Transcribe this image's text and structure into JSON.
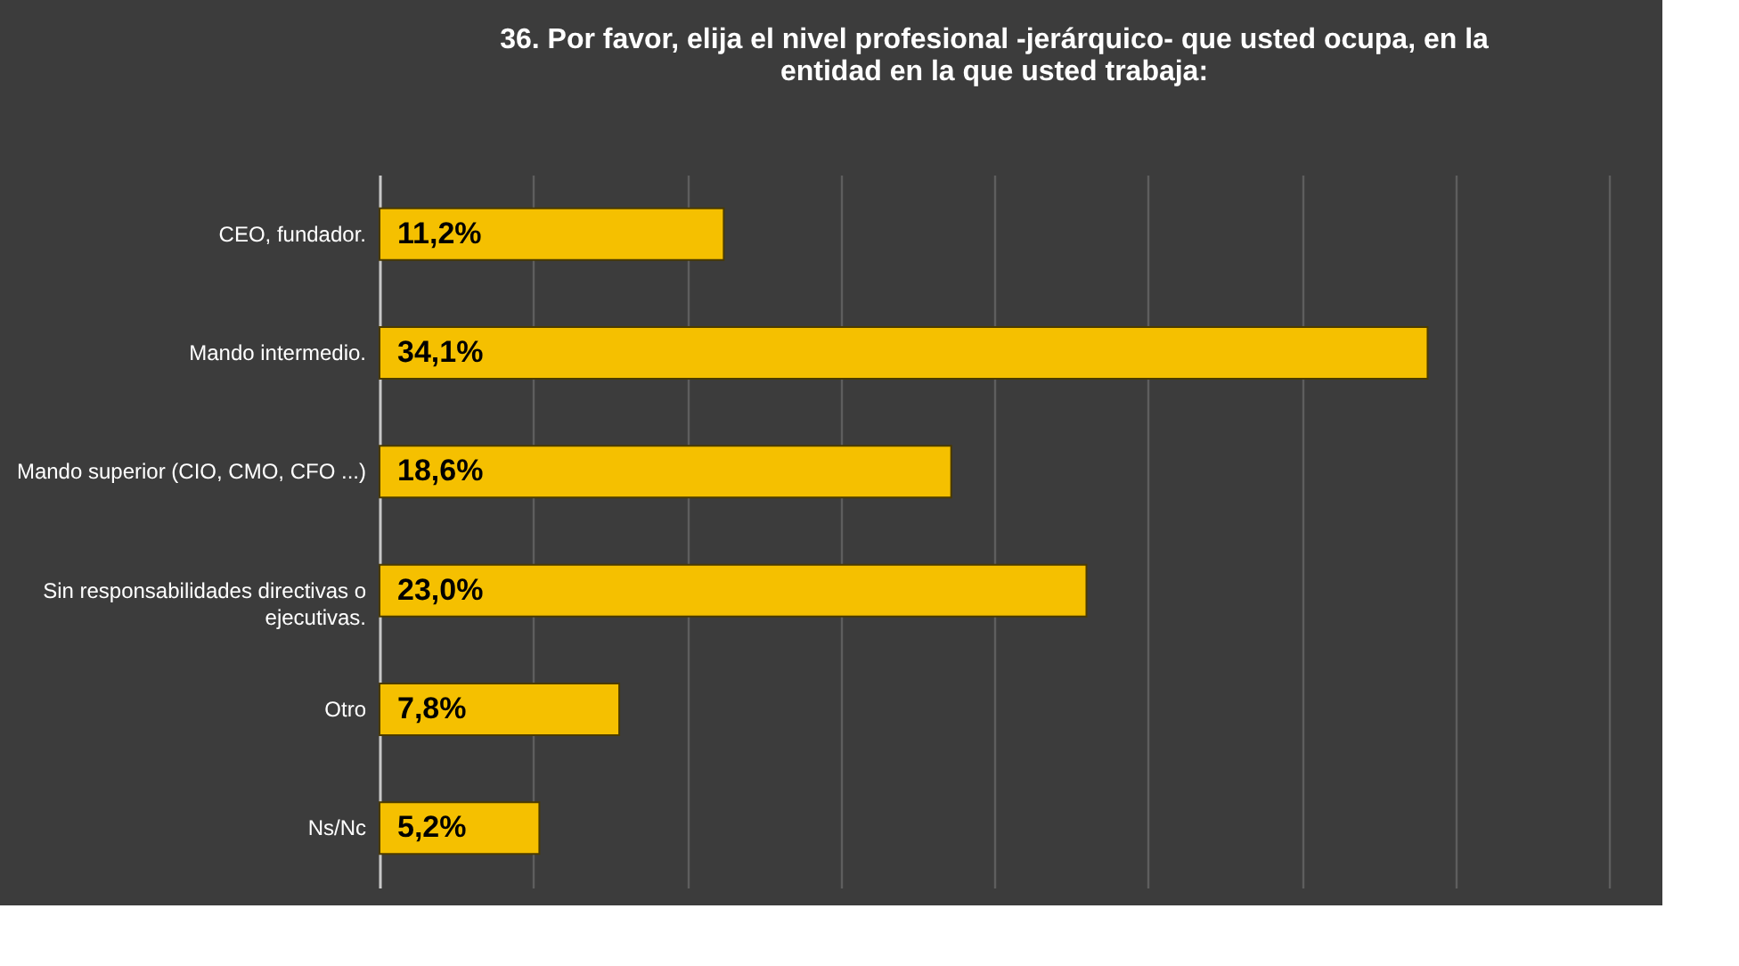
{
  "chart_data": {
    "type": "bar",
    "orientation": "horizontal",
    "title": "36.  Por favor, elija el nivel profesional -jerárquico- que usted ocupa, en la entidad en la que usted trabaja:",
    "categories": [
      "CEO, fundador.",
      "Mando intermedio.",
      "Mando superior (CIO, CMO, CFO ...)",
      "Sin responsabilidades directivas o ejecutivas.",
      "Otro",
      "Ns/Nc"
    ],
    "values": [
      11.2,
      34.1,
      18.6,
      23.0,
      7.8,
      5.2
    ],
    "value_labels": [
      "11,2%",
      "34,1%",
      "18,6%",
      "23,0%",
      "7,8%",
      "5,2%"
    ],
    "color": "#f5c000",
    "xlim": [
      0,
      40
    ],
    "xticks": [
      {
        "value": 0,
        "label": null
      },
      {
        "value": 5,
        "label": null
      },
      {
        "value": 10,
        "label": null
      },
      {
        "value": 15,
        "label": null
      },
      {
        "value": 20,
        "label": null
      },
      {
        "value": 25,
        "label": null
      },
      {
        "value": 30,
        "label": null
      },
      {
        "value": 35,
        "label": null
      },
      {
        "value": 40,
        "label": null
      }
    ],
    "tick_labels": "y",
    "grid": "x"
  }
}
